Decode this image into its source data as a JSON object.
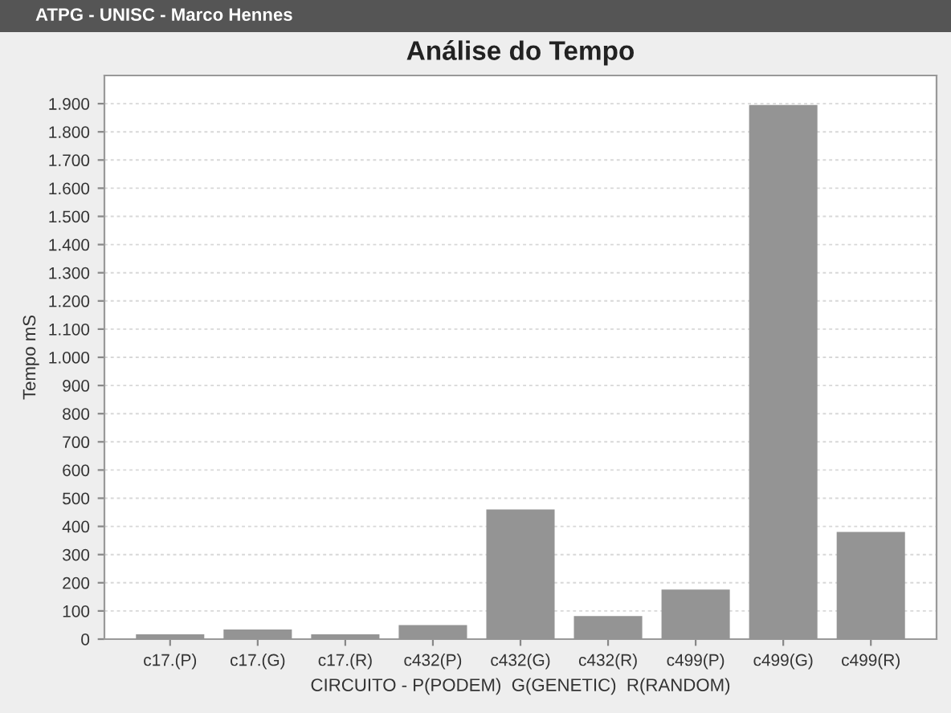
{
  "chart_data": {
    "type": "bar",
    "title": "Análise do Tempo",
    "xlabel": "CIRCUITO - P(PODEM)  G(GENETIC)  R(RANDOM)",
    "ylabel": "Tempo mS",
    "annotations": [
      "ATPG - UNISC - Marco Hennes"
    ],
    "categories": [
      "c17.(P)",
      "c17.(G)",
      "c17.(R)",
      "c432(P)",
      "c432(G)",
      "c432(R)",
      "c499(P)",
      "c499(G)",
      "c499(R)"
    ],
    "values": [
      17,
      34,
      17,
      50,
      460,
      82,
      176,
      1895,
      380
    ],
    "color": "#949494",
    "ylim": [
      0,
      2000
    ],
    "yticks": [
      {
        "value": 0,
        "label": "0"
      },
      {
        "value": 100,
        "label": "100"
      },
      {
        "value": 200,
        "label": "200"
      },
      {
        "value": 300,
        "label": "300"
      },
      {
        "value": 400,
        "label": "400"
      },
      {
        "value": 500,
        "label": "500"
      },
      {
        "value": 600,
        "label": "600"
      },
      {
        "value": 700,
        "label": "700"
      },
      {
        "value": 800,
        "label": "800"
      },
      {
        "value": 900,
        "label": "900"
      },
      {
        "value": 1000,
        "label": "1.000"
      },
      {
        "value": 1100,
        "label": "1.100"
      },
      {
        "value": 1200,
        "label": "1.200"
      },
      {
        "value": 1300,
        "label": "1.300"
      },
      {
        "value": 1400,
        "label": "1.400"
      },
      {
        "value": 1500,
        "label": "1.500"
      },
      {
        "value": 1600,
        "label": "1.600"
      },
      {
        "value": 1700,
        "label": "1.700"
      },
      {
        "value": 1800,
        "label": "1.800"
      },
      {
        "value": 1900,
        "label": "1.900"
      }
    ],
    "grid": "y"
  }
}
